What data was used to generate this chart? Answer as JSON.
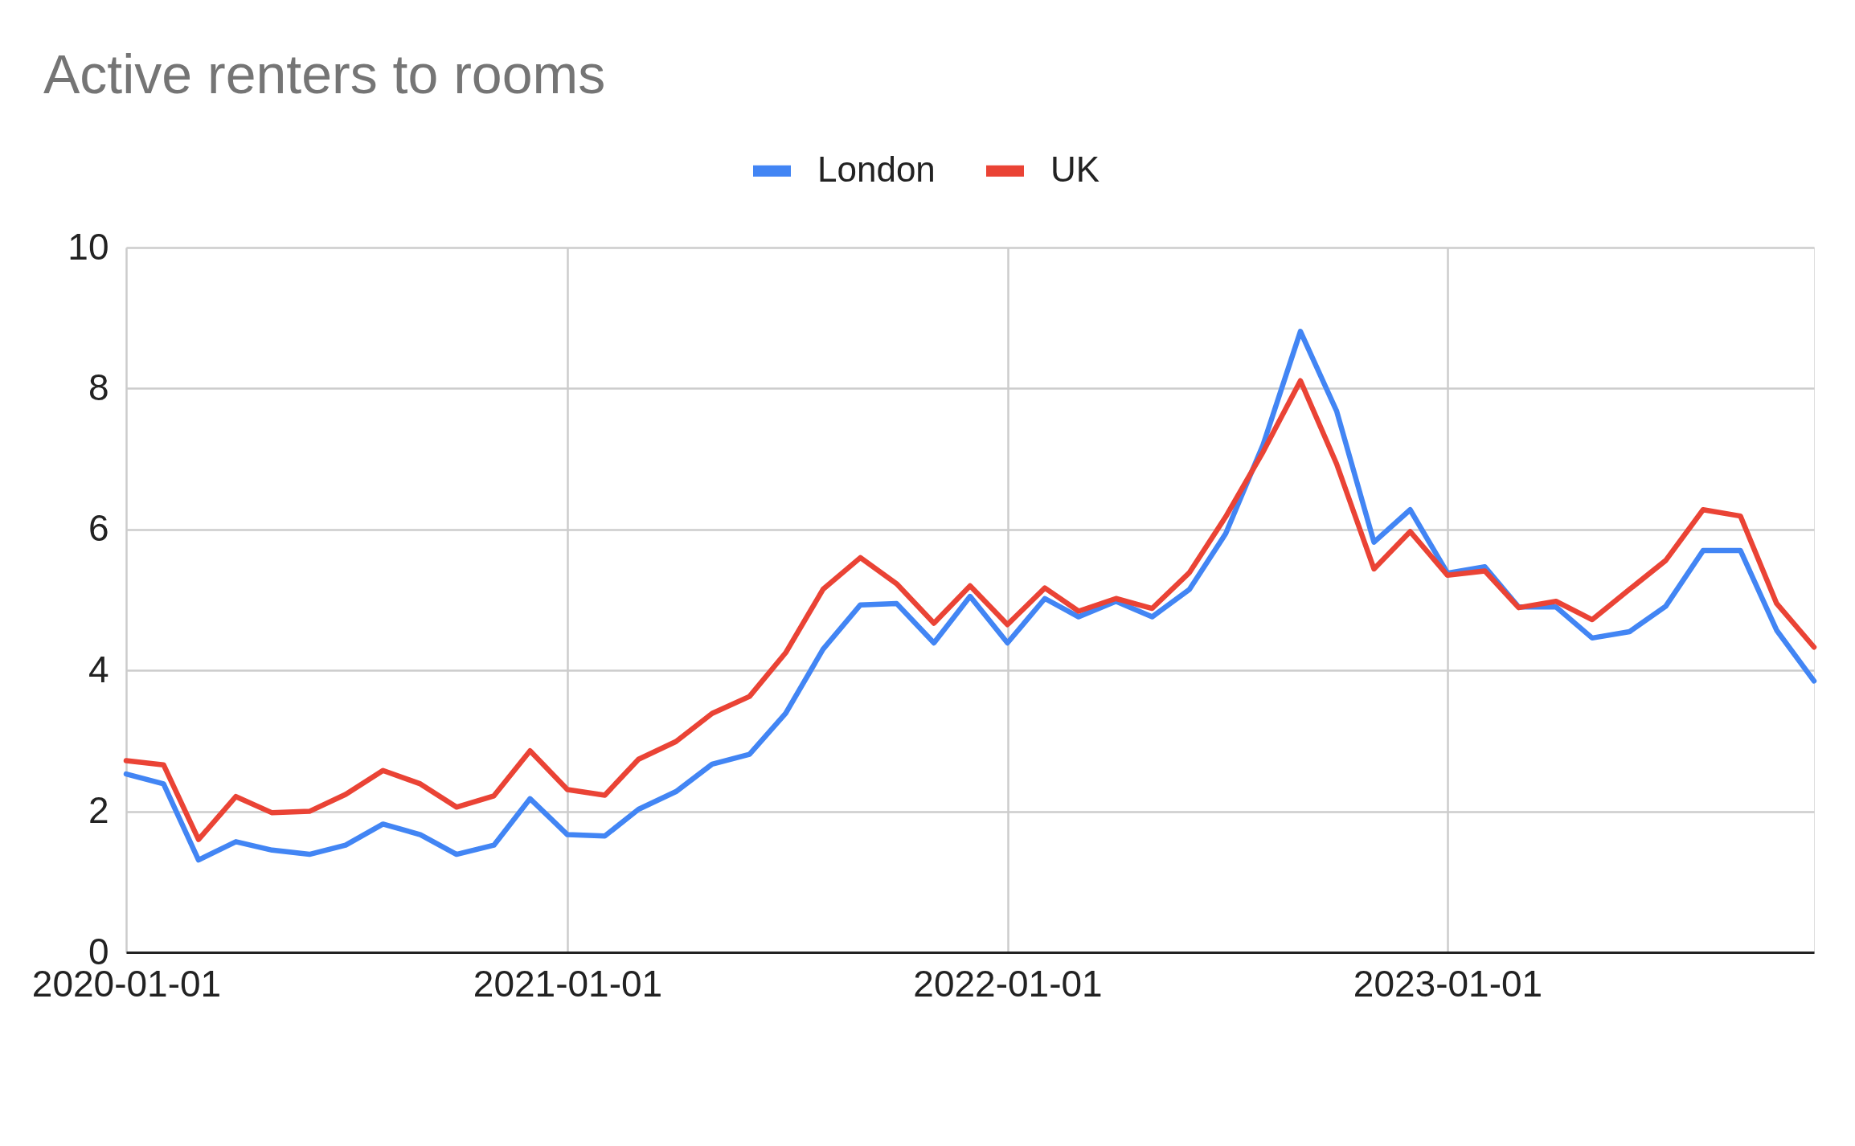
{
  "chart_data": {
    "type": "line",
    "title": "Active renters to rooms",
    "x": [
      "2020-01",
      "2020-02",
      "2020-03",
      "2020-04",
      "2020-05",
      "2020-06",
      "2020-07",
      "2020-08",
      "2020-09",
      "2020-10",
      "2020-11",
      "2020-12",
      "2021-01",
      "2021-02",
      "2021-03",
      "2021-04",
      "2021-05",
      "2021-06",
      "2021-07",
      "2021-08",
      "2021-09",
      "2021-10",
      "2021-11",
      "2021-12",
      "2022-01",
      "2022-02",
      "2022-03",
      "2022-04",
      "2022-05",
      "2022-06",
      "2022-07",
      "2022-08",
      "2022-09",
      "2022-10",
      "2022-11",
      "2022-12",
      "2023-01",
      "2023-02",
      "2023-03",
      "2023-04",
      "2023-05",
      "2023-06",
      "2023-07",
      "2023-08",
      "2023-09",
      "2023-10",
      "2023-11"
    ],
    "series": [
      {
        "name": "London",
        "color": "#4285f4",
        "values": [
          2.53,
          2.39,
          1.31,
          1.57,
          1.45,
          1.39,
          1.52,
          1.82,
          1.67,
          1.39,
          1.52,
          2.18,
          1.67,
          1.65,
          2.03,
          2.28,
          2.67,
          2.81,
          3.39,
          4.3,
          4.93,
          4.95,
          4.39,
          5.05,
          4.39,
          5.02,
          4.76,
          4.98,
          4.76,
          5.15,
          5.94,
          7.2,
          8.81,
          7.68,
          5.82,
          6.28,
          5.38,
          5.47,
          4.9,
          4.9,
          4.46,
          4.55,
          4.91,
          5.7,
          5.7,
          4.57,
          3.85
        ]
      },
      {
        "name": "UK",
        "color": "#ea4335",
        "values": [
          2.72,
          2.66,
          1.6,
          2.21,
          1.98,
          2.0,
          2.24,
          2.58,
          2.39,
          2.06,
          2.22,
          2.86,
          2.31,
          2.23,
          2.74,
          2.99,
          3.39,
          3.63,
          4.25,
          5.15,
          5.6,
          5.23,
          4.67,
          5.2,
          4.65,
          5.17,
          4.84,
          5.02,
          4.88,
          5.39,
          6.18,
          7.1,
          8.11,
          6.93,
          5.44,
          5.97,
          5.35,
          5.41,
          4.89,
          4.98,
          4.72,
          5.15,
          5.56,
          6.28,
          6.19,
          4.95,
          4.33
        ]
      }
    ],
    "xlim": [
      "2020-01-01",
      "2023-11-01"
    ],
    "xticks": [
      "2020-01-01",
      "2021-01-01",
      "2022-01-01",
      "2023-01-01"
    ],
    "ylim": [
      0,
      10
    ],
    "yticks": [
      0,
      2,
      4,
      6,
      8,
      10
    ],
    "grid": true,
    "legend": "top",
    "marker": "none",
    "line_style": "solid"
  }
}
